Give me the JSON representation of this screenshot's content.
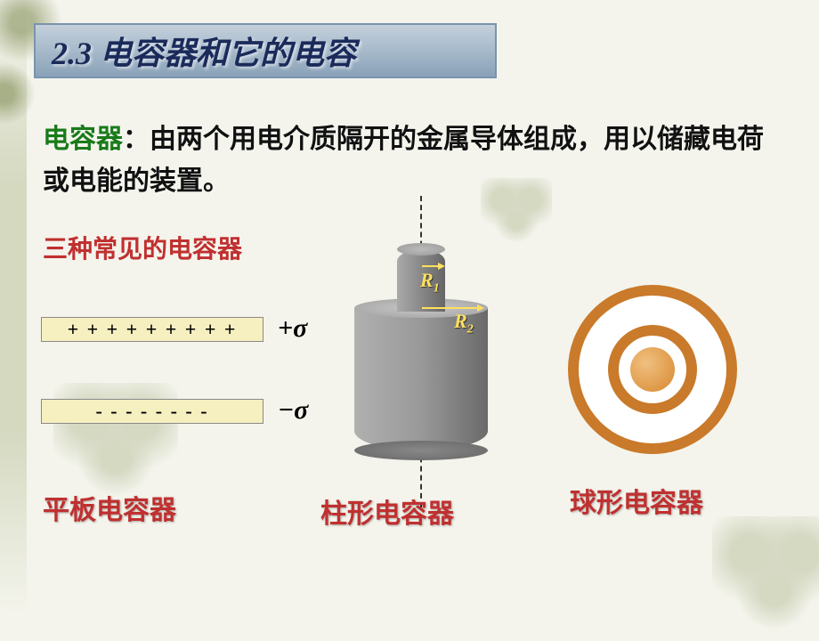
{
  "title": "2.3  电容器和它的电容",
  "definition": {
    "term": "电容器",
    "sep": "：",
    "text": "由两个用电介质隔开的金属导体组成，用以储藏电荷或电能的装置。"
  },
  "subtitle": "三种常见的电容器",
  "plates": {
    "top_charges": "+ + + + + + + + +",
    "bot_charges": "-   -   -   -   -   -   -   -",
    "sigma_plus": "+σ",
    "sigma_minus": "−σ"
  },
  "cylinder": {
    "r1": "R",
    "r1_sub": "1",
    "r2": "R",
    "r2_sub": "2"
  },
  "captions": {
    "plate": "平板电容器",
    "cylinder": "柱形电容器",
    "sphere": "球形电容器"
  },
  "colors": {
    "accent_red": "#c03030",
    "accent_green": "#1a7a1a",
    "banner_bg": "#8aa2b8",
    "plate_fill": "#f6f0c0",
    "cyl_gray": "#888888",
    "sphere_ring": "#c97a2a",
    "background": "#f4f4ec",
    "r_label": "#ffe060"
  }
}
